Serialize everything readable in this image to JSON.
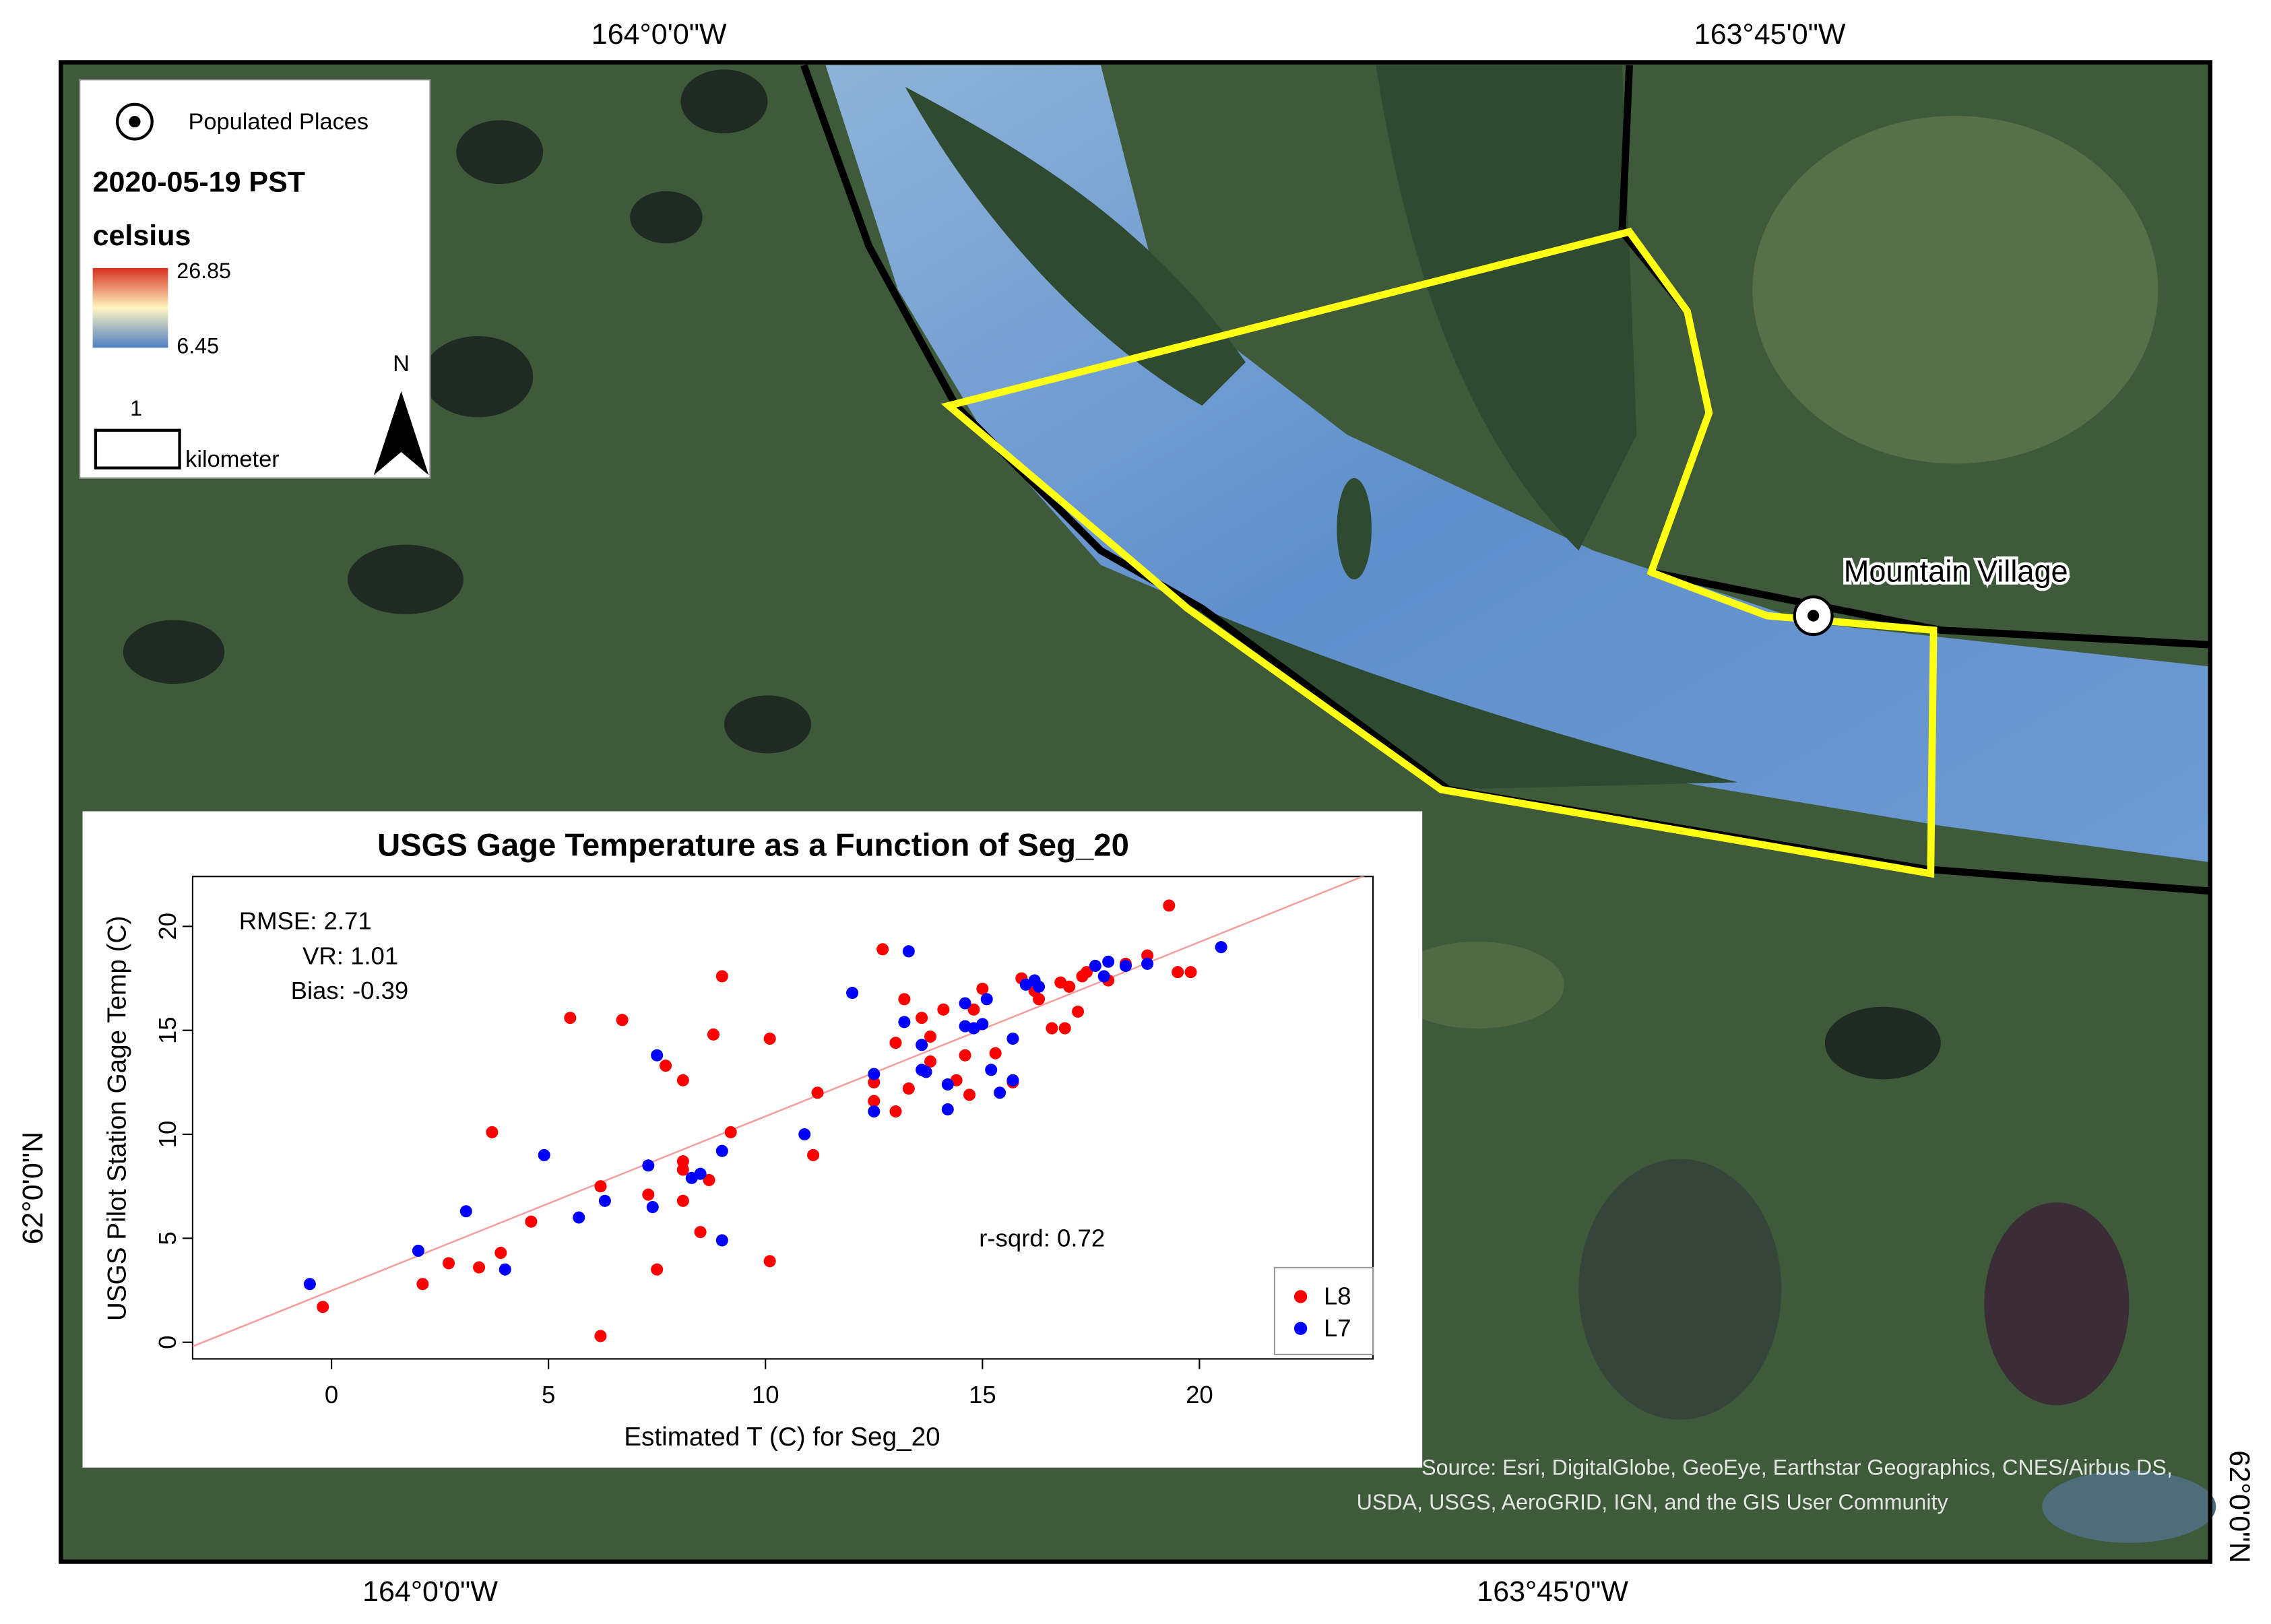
{
  "map": {
    "legend": {
      "populated_places": "Populated Places",
      "date": "2020-05-19 PST",
      "unit": "celsius",
      "max_label": "26.85",
      "min_label": "6.45",
      "scale_value": "1",
      "scale_unit": "kilometer",
      "north": "N"
    },
    "place_label": "Mountain Village",
    "coords": {
      "top_left": "164°0'0\"W",
      "top_right": "163°45'0\"W",
      "bottom_left": "164°0'0\"W",
      "bottom_right": "163°45'0\"W",
      "left": "62°0'0\"N",
      "right": "62°0'0\"N"
    },
    "attribution": [
      "Source: Esri, DigitalGlobe, GeoEye, Earthstar Geographics, CNES/Airbus DS,",
      "USDA, USGS, AeroGRID, IGN, and the GIS User Community"
    ]
  },
  "chart_data": {
    "type": "scatter",
    "title": "USGS Gage Temperature as a Function of Seg_20",
    "x_label": "Estimated T (C) for Seg_20",
    "y_label": "USGS Pilot Station Gage Temp (C)",
    "annotations": [
      "RMSE: 2.71",
      "VR: 1.01",
      "Bias: -0.39",
      "r-sqrd: 0.72"
    ],
    "xlim": [
      -3.2,
      24
    ],
    "ylim": [
      -0.8,
      22.4
    ],
    "xticks": [
      0,
      5,
      10,
      15,
      20
    ],
    "yticks": [
      0,
      5,
      10,
      15,
      20
    ],
    "trend_line": {
      "color": "#f4a0a0",
      "x": [
        -3.2,
        24
      ],
      "y": [
        -0.2,
        22.6
      ]
    },
    "legend_position": "lower right",
    "series": [
      {
        "name": "L8",
        "color": "#ff0000",
        "x": [
          -0.2,
          2.1,
          2.7,
          3.4,
          3.9,
          3.7,
          4.6,
          5.5,
          6.2,
          6.2,
          6.7,
          7.3,
          7.5,
          7.7,
          8.1,
          8.1,
          8.1,
          8.1,
          8.5,
          8.7,
          8.8,
          9.0,
          9.2,
          10.1,
          10.1,
          11.1,
          11.2,
          12.5,
          12.5,
          12.7,
          13.0,
          13.0,
          13.2,
          13.3,
          13.6,
          13.8,
          13.8,
          14.1,
          14.4,
          14.6,
          14.7,
          14.8,
          15.0,
          15.3,
          15.7,
          15.9,
          16.2,
          16.3,
          16.6,
          16.8,
          16.9,
          17.0,
          17.2,
          17.3,
          17.4,
          17.9,
          18.3,
          18.8,
          19.3,
          19.5,
          19.8
        ],
        "values": [
          1.7,
          2.8,
          3.8,
          3.6,
          4.3,
          10.1,
          5.8,
          15.6,
          7.5,
          0.3,
          15.5,
          7.1,
          3.5,
          13.3,
          12.6,
          6.8,
          8.7,
          8.3,
          5.3,
          7.8,
          14.8,
          17.6,
          10.1,
          14.6,
          3.9,
          9.0,
          12.0,
          12.5,
          11.6,
          18.9,
          11.1,
          14.4,
          16.5,
          12.2,
          15.6,
          13.5,
          14.7,
          16.0,
          12.6,
          13.8,
          11.9,
          16.0,
          17.0,
          13.9,
          12.5,
          17.5,
          16.9,
          16.5,
          15.1,
          17.3,
          15.1,
          17.1,
          15.9,
          17.6,
          17.8,
          17.4,
          18.2,
          18.6,
          21.0,
          17.8,
          17.8
        ]
      },
      {
        "name": "L7",
        "color": "#0000ff",
        "x": [
          -0.5,
          2.0,
          3.1,
          4.0,
          4.9,
          5.7,
          6.3,
          7.3,
          7.4,
          7.5,
          8.3,
          8.5,
          9.0,
          9.0,
          10.9,
          12.0,
          12.5,
          12.5,
          13.3,
          13.2,
          13.6,
          13.6,
          13.7,
          14.2,
          14.2,
          14.6,
          14.6,
          14.8,
          15.0,
          15.1,
          15.2,
          15.4,
          15.7,
          15.7,
          16.0,
          16.2,
          16.3,
          17.6,
          17.8,
          17.9,
          18.3,
          18.8,
          20.5
        ],
        "values": [
          2.8,
          4.4,
          6.3,
          3.5,
          9.0,
          6.0,
          6.8,
          8.5,
          6.5,
          13.8,
          7.9,
          8.1,
          9.2,
          4.9,
          10.0,
          16.8,
          12.9,
          11.1,
          18.8,
          15.4,
          13.1,
          14.3,
          13.0,
          12.4,
          11.2,
          15.2,
          16.3,
          15.1,
          15.3,
          16.5,
          13.1,
          12.0,
          14.6,
          12.6,
          17.2,
          17.4,
          17.1,
          18.1,
          17.6,
          18.3,
          18.1,
          18.2,
          19.0
        ]
      }
    ]
  }
}
